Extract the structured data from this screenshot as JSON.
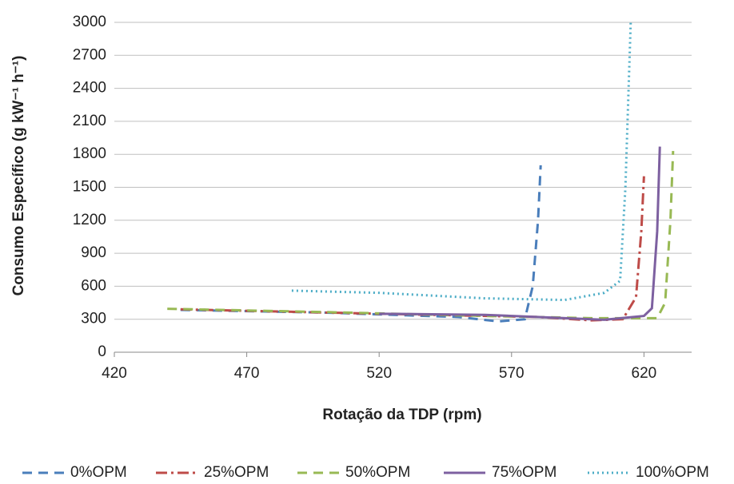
{
  "chart_data": {
    "type": "line",
    "x_label": "Rotação da TDP (rpm)",
    "y_label": "Consumo Específico (g kW⁻¹ h⁻¹)",
    "xlim": [
      420,
      638
    ],
    "xticks": [
      420,
      470,
      520,
      570,
      620
    ],
    "ylim": [
      0,
      3000
    ],
    "yticks": [
      0,
      300,
      600,
      900,
      1200,
      1500,
      1800,
      2100,
      2400,
      2700,
      3000
    ],
    "grid": true,
    "legend": "bottom",
    "series": [
      {
        "name": "0%OPM",
        "color": "#4a7ebb",
        "dash": "dashed",
        "x": [
          445,
          500,
          550,
          565,
          575,
          578,
          580,
          581
        ],
        "values": [
          385,
          360,
          320,
          280,
          300,
          600,
          1200,
          1700
        ]
      },
      {
        "name": "25%OPM",
        "color": "#be4b48",
        "dash": "dashdot",
        "x": [
          445,
          520,
          580,
          600,
          612,
          617,
          619,
          620
        ],
        "values": [
          390,
          350,
          320,
          290,
          300,
          500,
          1100,
          1600
        ]
      },
      {
        "name": "50%OPM",
        "color": "#98b954",
        "dash": "dashed",
        "x": [
          440,
          500,
          560,
          600,
          625,
          628,
          630,
          631
        ],
        "values": [
          395,
          365,
          330,
          310,
          310,
          450,
          1200,
          1830
        ]
      },
      {
        "name": "75%OPM",
        "color": "#7d60a0",
        "dash": "solid",
        "x": [
          520,
          560,
          605,
          620,
          623,
          625,
          626
        ],
        "values": [
          350,
          340,
          295,
          330,
          400,
          1100,
          1870
        ]
      },
      {
        "name": "100%OPM",
        "color": "#4bacc6",
        "dash": "dotted",
        "x": [
          487,
          520,
          560,
          590,
          605,
          611,
          613,
          615
        ],
        "values": [
          560,
          540,
          490,
          475,
          540,
          650,
          1500,
          3000
        ]
      }
    ]
  }
}
